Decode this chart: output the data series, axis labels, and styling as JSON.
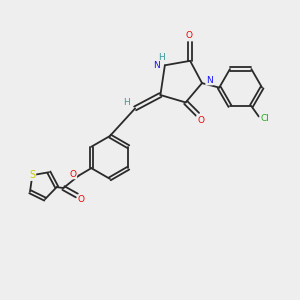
{
  "background_color": "#eeeeee",
  "bond_color": "#2a2a2a",
  "atom_colors": {
    "O": "#ee0000",
    "N": "#1414ff",
    "H": "#3a9999",
    "Cl": "#22aa22",
    "S": "#cccc00",
    "C": "#2a2a2a"
  },
  "figsize": [
    3.0,
    3.0
  ],
  "dpi": 100,
  "bond_lw": 1.3,
  "double_sep": 0.065,
  "font_size": 6.5
}
